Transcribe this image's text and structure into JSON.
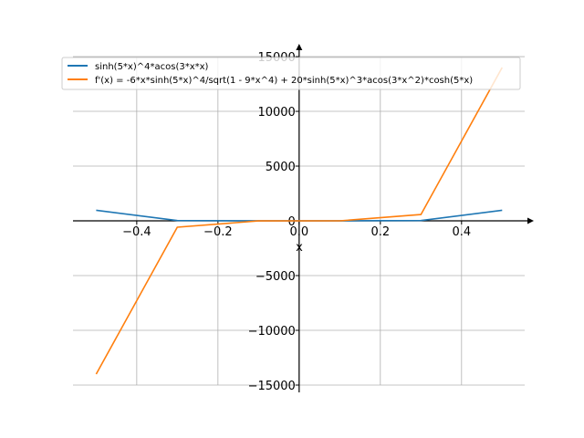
{
  "chart_data": {
    "type": "line",
    "title": "",
    "xlabel": "x",
    "ylabel": "",
    "xlim": [
      -0.557,
      0.578
    ],
    "ylim": [
      -15250,
      16170
    ],
    "grid": true,
    "legend_position": "top",
    "xticks": [
      -0.4,
      -0.2,
      0.0,
      0.2,
      0.4
    ],
    "xtick_labels": [
      "−0.4",
      "−0.2",
      "0.0",
      "0.2",
      "0.4"
    ],
    "yticks": [
      -15000,
      -10000,
      -5000,
      0,
      5000,
      10000,
      15000
    ],
    "ytick_labels": [
      "−15000",
      "−10000",
      "−5000",
      "0",
      "5000",
      "10000",
      "15000"
    ],
    "series": [
      {
        "name": "sinh(5*x)^4*acos(3*x*x)",
        "color": "#1f77b4",
        "x": [
          -0.5,
          -0.3,
          -0.1,
          0.1,
          0.3,
          0.5
        ],
        "y": [
          968,
          27,
          0.1,
          0.1,
          27,
          968
        ]
      },
      {
        "name": "f'(x) = -6*x*sinh(5*x)^4/sqrt(1 - 9*x^4) + 20*sinh(5*x)^3*acos(3*x^2)*cosh(5*x)",
        "color": "#ff7f0e",
        "x": [
          -0.5,
          -0.3,
          -0.1,
          0.1,
          0.3,
          0.5
        ],
        "y": [
          -14000,
          -580,
          -4,
          4,
          580,
          14000
        ]
      }
    ]
  }
}
